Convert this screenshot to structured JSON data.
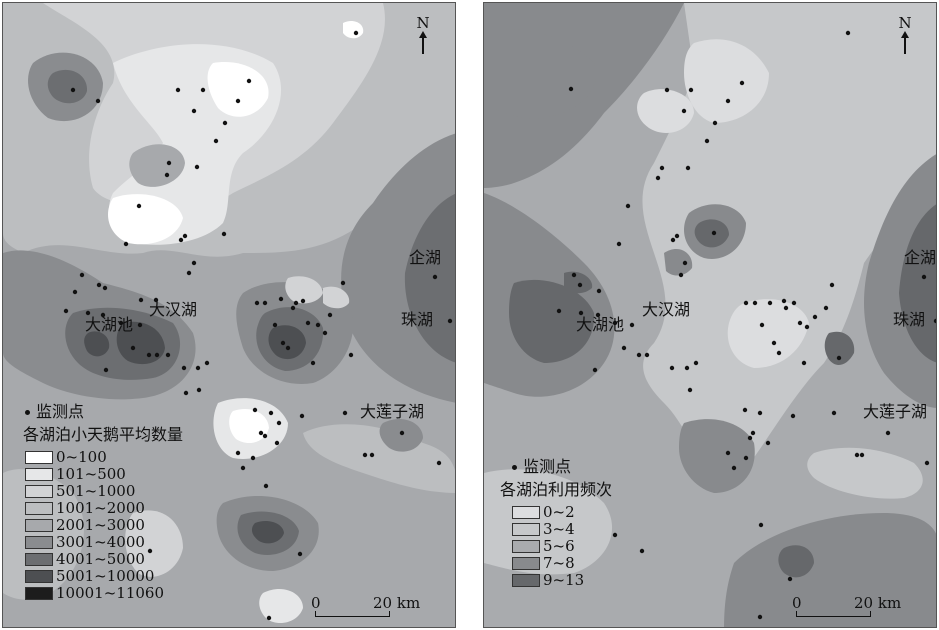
{
  "colors": {
    "rampA": [
      "#ffffff",
      "#e6e7e8",
      "#d2d3d5",
      "#bcbec0",
      "#a7a9ac",
      "#8a8c8f",
      "#6c6e71",
      "#4d4f52",
      "#1c1c1c"
    ],
    "rampB": [
      "#dcdddf",
      "#c6c8ca",
      "#a9abae",
      "#888a8d",
      "#66686b"
    ],
    "ink": "#111111"
  },
  "north_label": "N",
  "scale": {
    "zero": "0",
    "distance": "20 km"
  },
  "map_left": {
    "place_labels": {
      "qihu": "企湖",
      "zhuhu": "珠湖",
      "dahuchi": "大湖池",
      "dahanhu": "大汉湖",
      "daliangzihu": "大莲子湖"
    },
    "legend": {
      "key_label": "监测点",
      "title": "各湖泊小天鹅平均数量",
      "classes": [
        "0~100",
        "101~500",
        "501~1000",
        "1001~2000",
        "2001~3000",
        "3001~4000",
        "4001~5000",
        "5001~10000",
        "10001~11060"
      ]
    }
  },
  "map_right": {
    "place_labels": {
      "qihu": "企湖",
      "zhuhu": "珠湖",
      "dahuchi": "大湖池",
      "dahanhu": "大汉湖",
      "daliangzihu": "大莲子湖"
    },
    "legend": {
      "key_label": "监测点",
      "title": "各湖泊利用频次",
      "classes": [
        "0~2",
        "3~4",
        "5~6",
        "7~8",
        "9~13"
      ]
    }
  }
}
